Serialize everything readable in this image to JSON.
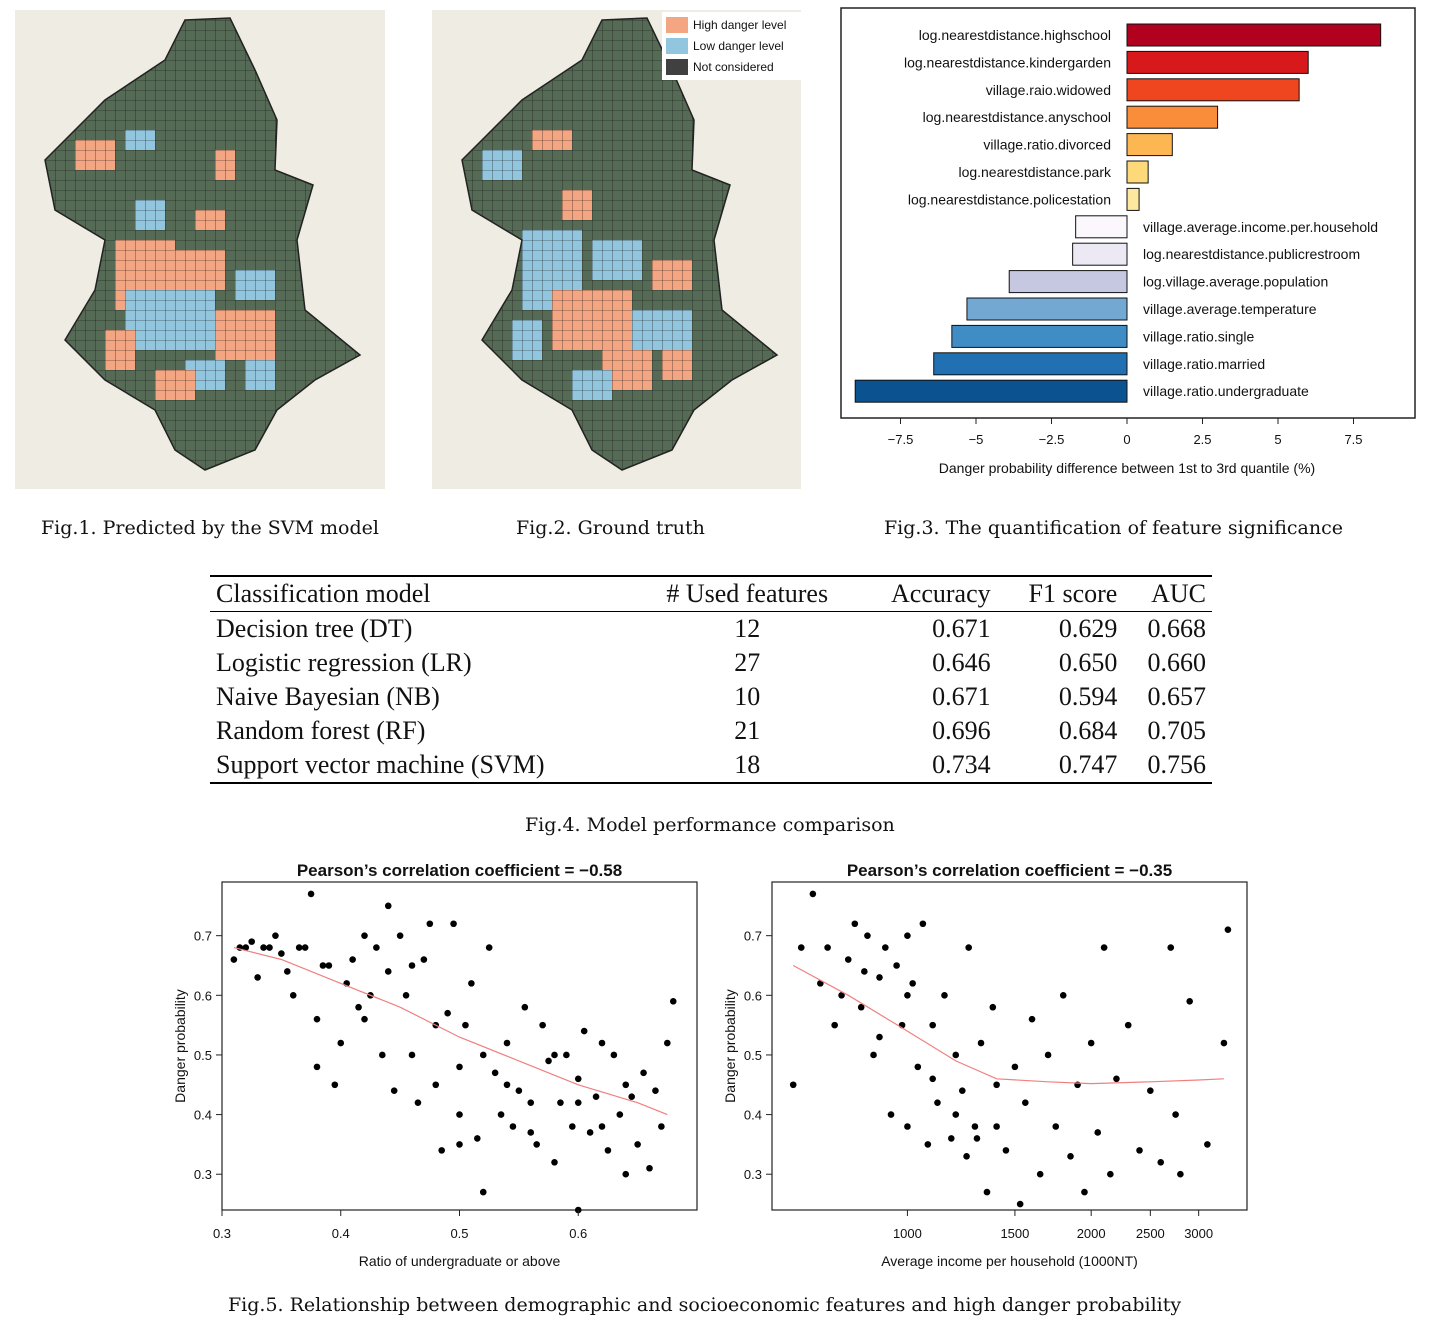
{
  "fig1": {
    "caption": "Fig.1. Predicted by the SVM model"
  },
  "fig2": {
    "caption": "Fig.2. Ground truth",
    "legend": [
      {
        "label": "High danger level",
        "color": "#f4a582"
      },
      {
        "label": "Low danger level",
        "color": "#92c5de"
      },
      {
        "label": "Not considered",
        "color": "#404040"
      }
    ]
  },
  "fig3": {
    "caption": "Fig.3. The quantification of feature significance",
    "chart_data": {
      "type": "bar",
      "orientation": "horizontal",
      "xlabel": "Danger probability difference between 1st to 3rd quantile (%)",
      "xlim": [
        -9.5,
        9.5
      ],
      "xticks": [
        -7.5,
        -5,
        -2.5,
        0,
        2.5,
        5,
        7.5
      ],
      "xtick_labels": [
        "−7.5",
        "−5",
        "−2.5",
        "0",
        "2.5",
        "5",
        "7.5"
      ],
      "categories": [
        "log.nearestdistance.highschool",
        "log.nearestdistance.kindergarden",
        "village.raio.widowed",
        "log.nearestdistance.anyschool",
        "village.ratio.divorced",
        "log.nearestdistance.park",
        "log.nearestdistance.policestation",
        "village.average.income.per.household",
        "log.nearestdistance.publicrestroom",
        "log.village.average.population",
        "village.average.temperature",
        "village.ratio.single",
        "village.ratio.married",
        "village.ratio.undergraduate"
      ],
      "values": [
        8.4,
        6.0,
        5.7,
        3.0,
        1.5,
        0.7,
        0.4,
        -1.7,
        -1.8,
        -3.9,
        -5.3,
        -5.8,
        -6.4,
        -9.0
      ],
      "colors": [
        "#b2001f",
        "#d7191c",
        "#f0461f",
        "#f98d3a",
        "#fdb752",
        "#fdd97a",
        "#fee8a0",
        "#fbf7fc",
        "#ece9f4",
        "#c6c8e2",
        "#72a8d2",
        "#3f8dc4",
        "#2070b2",
        "#0b5290"
      ]
    }
  },
  "fig4": {
    "caption": "Fig.4. Model performance comparison",
    "headers": [
      "Classification model",
      "# Used features",
      "Accuracy",
      "F1 score",
      "AUC"
    ],
    "rows": [
      {
        "model": "Decision tree (DT)",
        "features": "12",
        "accuracy": "0.671",
        "f1": "0.629",
        "auc": "0.668"
      },
      {
        "model": "Logistic regression (LR)",
        "features": "27",
        "accuracy": "0.646",
        "f1": "0.650",
        "auc": "0.660"
      },
      {
        "model": "Naive Bayesian (NB)",
        "features": "10",
        "accuracy": "0.671",
        "f1": "0.594",
        "auc": "0.657"
      },
      {
        "model": "Random forest (RF)",
        "features": "21",
        "accuracy": "0.696",
        "f1": "0.684",
        "auc": "0.705"
      },
      {
        "model": "Support vector machine (SVM)",
        "features": "18",
        "accuracy": "0.734",
        "f1": "0.747",
        "auc": "0.756"
      }
    ]
  },
  "fig5": {
    "caption": "Fig.5. Relationship between demographic and socioeconomic features and high danger probability",
    "chart_data": [
      {
        "type": "scatter",
        "title": "Pearson’s correlation coefficient = −0.58",
        "xlabel": "Ratio of undergraduate or above",
        "ylabel": "Danger probability",
        "xlim": [
          0.3,
          0.7
        ],
        "ylim": [
          0.24,
          0.79
        ],
        "xticks": [
          0.3,
          0.4,
          0.5,
          0.6
        ],
        "xtick_labels": [
          "0.3",
          "0.4",
          "0.5",
          "0.6"
        ],
        "yticks": [
          0.3,
          0.4,
          0.5,
          0.6,
          0.7
        ],
        "ytick_labels": [
          "0.3",
          "0.4",
          "0.5",
          "0.6",
          "0.7"
        ],
        "points": [
          [
            0.31,
            0.66
          ],
          [
            0.315,
            0.68
          ],
          [
            0.32,
            0.68
          ],
          [
            0.325,
            0.69
          ],
          [
            0.33,
            0.63
          ],
          [
            0.335,
            0.68
          ],
          [
            0.34,
            0.68
          ],
          [
            0.345,
            0.7
          ],
          [
            0.35,
            0.67
          ],
          [
            0.355,
            0.64
          ],
          [
            0.36,
            0.6
          ],
          [
            0.365,
            0.68
          ],
          [
            0.37,
            0.68
          ],
          [
            0.375,
            0.77
          ],
          [
            0.38,
            0.56
          ],
          [
            0.385,
            0.65
          ],
          [
            0.39,
            0.65
          ],
          [
            0.395,
            0.45
          ],
          [
            0.4,
            0.52
          ],
          [
            0.405,
            0.62
          ],
          [
            0.41,
            0.66
          ],
          [
            0.415,
            0.58
          ],
          [
            0.42,
            0.7
          ],
          [
            0.425,
            0.6
          ],
          [
            0.43,
            0.68
          ],
          [
            0.435,
            0.5
          ],
          [
            0.44,
            0.75
          ],
          [
            0.445,
            0.44
          ],
          [
            0.45,
            0.7
          ],
          [
            0.455,
            0.6
          ],
          [
            0.46,
            0.65
          ],
          [
            0.465,
            0.42
          ],
          [
            0.47,
            0.66
          ],
          [
            0.475,
            0.72
          ],
          [
            0.48,
            0.55
          ],
          [
            0.485,
            0.34
          ],
          [
            0.49,
            0.57
          ],
          [
            0.495,
            0.72
          ],
          [
            0.5,
            0.48
          ],
          [
            0.505,
            0.55
          ],
          [
            0.51,
            0.62
          ],
          [
            0.515,
            0.36
          ],
          [
            0.52,
            0.5
          ],
          [
            0.525,
            0.68
          ],
          [
            0.53,
            0.47
          ],
          [
            0.535,
            0.4
          ],
          [
            0.54,
            0.52
          ],
          [
            0.545,
            0.38
          ],
          [
            0.55,
            0.44
          ],
          [
            0.555,
            0.58
          ],
          [
            0.56,
            0.42
          ],
          [
            0.565,
            0.35
          ],
          [
            0.57,
            0.55
          ],
          [
            0.575,
            0.49
          ],
          [
            0.58,
            0.32
          ],
          [
            0.585,
            0.42
          ],
          [
            0.59,
            0.5
          ],
          [
            0.595,
            0.38
          ],
          [
            0.6,
            0.46
          ],
          [
            0.605,
            0.54
          ],
          [
            0.61,
            0.37
          ],
          [
            0.615,
            0.43
          ],
          [
            0.62,
            0.52
          ],
          [
            0.625,
            0.34
          ],
          [
            0.63,
            0.5
          ],
          [
            0.635,
            0.4
          ],
          [
            0.64,
            0.3
          ],
          [
            0.645,
            0.43
          ],
          [
            0.65,
            0.35
          ],
          [
            0.655,
            0.47
          ],
          [
            0.66,
            0.31
          ],
          [
            0.665,
            0.44
          ],
          [
            0.67,
            0.38
          ],
          [
            0.675,
            0.52
          ],
          [
            0.68,
            0.59
          ],
          [
            0.42,
            0.56
          ],
          [
            0.46,
            0.5
          ],
          [
            0.5,
            0.4
          ],
          [
            0.54,
            0.45
          ],
          [
            0.58,
            0.5
          ],
          [
            0.62,
            0.38
          ],
          [
            0.52,
            0.27
          ],
          [
            0.6,
            0.24
          ],
          [
            0.38,
            0.48
          ],
          [
            0.44,
            0.64
          ],
          [
            0.48,
            0.45
          ],
          [
            0.56,
            0.37
          ],
          [
            0.64,
            0.45
          ],
          [
            0.5,
            0.35
          ],
          [
            0.6,
            0.42
          ]
        ],
        "trend": [
          [
            0.31,
            0.68
          ],
          [
            0.35,
            0.66
          ],
          [
            0.4,
            0.62
          ],
          [
            0.45,
            0.58
          ],
          [
            0.5,
            0.53
          ],
          [
            0.55,
            0.49
          ],
          [
            0.6,
            0.45
          ],
          [
            0.65,
            0.42
          ],
          [
            0.675,
            0.4
          ]
        ]
      },
      {
        "type": "scatter",
        "title": "Pearson’s correlation coefficient = −0.35",
        "xlabel": "Average income per household (1000NT)",
        "ylabel": "Danger probability",
        "x_scale": "log",
        "xlim": [
          600,
          3600
        ],
        "ylim": [
          0.24,
          0.79
        ],
        "xticks": [
          1000,
          1500,
          2000,
          2500,
          3000
        ],
        "xtick_labels": [
          "1000",
          "1500",
          "2000",
          "2500",
          "3000"
        ],
        "yticks": [
          0.3,
          0.4,
          0.5,
          0.6,
          0.7
        ],
        "ytick_labels": [
          "0.3",
          "0.4",
          "0.5",
          "0.6",
          "0.7"
        ],
        "points": [
          [
            650,
            0.45
          ],
          [
            670,
            0.68
          ],
          [
            700,
            0.77
          ],
          [
            720,
            0.62
          ],
          [
            740,
            0.68
          ],
          [
            760,
            0.55
          ],
          [
            780,
            0.6
          ],
          [
            800,
            0.66
          ],
          [
            820,
            0.72
          ],
          [
            840,
            0.58
          ],
          [
            860,
            0.7
          ],
          [
            880,
            0.5
          ],
          [
            900,
            0.63
          ],
          [
            920,
            0.68
          ],
          [
            940,
            0.4
          ],
          [
            960,
            0.65
          ],
          [
            980,
            0.55
          ],
          [
            1000,
            0.38
          ],
          [
            1020,
            0.62
          ],
          [
            1040,
            0.48
          ],
          [
            1060,
            0.72
          ],
          [
            1080,
            0.35
          ],
          [
            1100,
            0.55
          ],
          [
            1120,
            0.42
          ],
          [
            1150,
            0.6
          ],
          [
            1180,
            0.36
          ],
          [
            1200,
            0.5
          ],
          [
            1230,
            0.44
          ],
          [
            1260,
            0.68
          ],
          [
            1290,
            0.38
          ],
          [
            1320,
            0.52
          ],
          [
            1350,
            0.27
          ],
          [
            1380,
            0.58
          ],
          [
            1400,
            0.45
          ],
          [
            1450,
            0.34
          ],
          [
            1500,
            0.48
          ],
          [
            1530,
            0.25
          ],
          [
            1560,
            0.42
          ],
          [
            1600,
            0.56
          ],
          [
            1650,
            0.3
          ],
          [
            1700,
            0.5
          ],
          [
            1750,
            0.38
          ],
          [
            1800,
            0.6
          ],
          [
            1850,
            0.33
          ],
          [
            1900,
            0.45
          ],
          [
            1950,
            0.27
          ],
          [
            2000,
            0.52
          ],
          [
            2050,
            0.37
          ],
          [
            2100,
            0.68
          ],
          [
            2150,
            0.3
          ],
          [
            2200,
            0.46
          ],
          [
            2300,
            0.55
          ],
          [
            2400,
            0.34
          ],
          [
            2500,
            0.44
          ],
          [
            2600,
            0.32
          ],
          [
            2700,
            0.68
          ],
          [
            2750,
            0.4
          ],
          [
            2800,
            0.3
          ],
          [
            2900,
            0.59
          ],
          [
            3100,
            0.35
          ],
          [
            3300,
            0.52
          ],
          [
            3350,
            0.71
          ],
          [
            1000,
            0.6
          ],
          [
            1100,
            0.46
          ],
          [
            1200,
            0.4
          ],
          [
            1300,
            0.36
          ],
          [
            900,
            0.53
          ],
          [
            850,
            0.64
          ],
          [
            1400,
            0.38
          ],
          [
            1000,
            0.7
          ],
          [
            1250,
            0.33
          ]
        ],
        "trend": [
          [
            650,
            0.65
          ],
          [
            800,
            0.6
          ],
          [
            1000,
            0.54
          ],
          [
            1200,
            0.49
          ],
          [
            1400,
            0.46
          ],
          [
            1700,
            0.455
          ],
          [
            2000,
            0.452
          ],
          [
            2500,
            0.455
          ],
          [
            3000,
            0.458
          ],
          [
            3300,
            0.46
          ]
        ]
      }
    ]
  }
}
